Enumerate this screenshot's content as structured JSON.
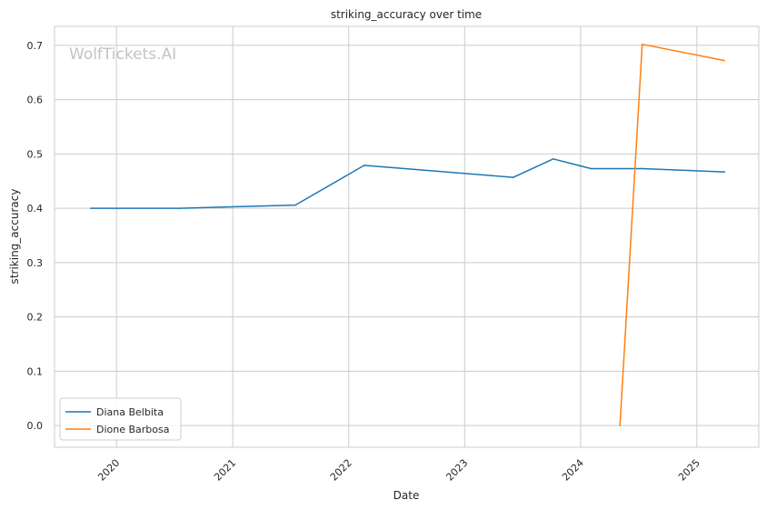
{
  "chart_data": {
    "type": "line",
    "title": "striking_accuracy over time",
    "xlabel": "Date",
    "ylabel": "striking_accuracy",
    "watermark": "WolfTickets.AI",
    "x_axis": "date",
    "xlim": [
      "2019-06-20",
      "2025-07-15"
    ],
    "ylim": [
      -0.04,
      0.735
    ],
    "x_ticks": [
      {
        "date": "2020-01-01",
        "label": "2020"
      },
      {
        "date": "2021-01-01",
        "label": "2021"
      },
      {
        "date": "2022-01-01",
        "label": "2022"
      },
      {
        "date": "2023-01-01",
        "label": "2023"
      },
      {
        "date": "2024-01-01",
        "label": "2024"
      },
      {
        "date": "2025-01-01",
        "label": "2025"
      }
    ],
    "y_ticks": [
      {
        "value": 0.0,
        "label": "0.0"
      },
      {
        "value": 0.1,
        "label": "0.1"
      },
      {
        "value": 0.2,
        "label": "0.2"
      },
      {
        "value": 0.3,
        "label": "0.3"
      },
      {
        "value": 0.4,
        "label": "0.4"
      },
      {
        "value": 0.5,
        "label": "0.5"
      },
      {
        "value": 0.6,
        "label": "0.6"
      },
      {
        "value": 0.7,
        "label": "0.7"
      }
    ],
    "grid": true,
    "legend_position": "lower-left",
    "series": [
      {
        "name": "Diana Belbita",
        "color": "#1f77b4",
        "points": [
          {
            "x": "2019-10-12",
            "y": 0.4
          },
          {
            "x": "2020-07-18",
            "y": 0.4
          },
          {
            "x": "2021-07-17",
            "y": 0.406
          },
          {
            "x": "2022-02-19",
            "y": 0.479
          },
          {
            "x": "2023-06-03",
            "y": 0.457
          },
          {
            "x": "2023-10-07",
            "y": 0.491
          },
          {
            "x": "2024-02-03",
            "y": 0.473
          },
          {
            "x": "2024-07-13",
            "y": 0.473
          },
          {
            "x": "2025-03-29",
            "y": 0.467
          }
        ]
      },
      {
        "name": "Dione Barbosa",
        "color": "#ff7f0e",
        "points": [
          {
            "x": "2024-05-04",
            "y": 0.0
          },
          {
            "x": "2024-07-13",
            "y": 0.702
          },
          {
            "x": "2025-03-29",
            "y": 0.672
          }
        ]
      }
    ]
  }
}
